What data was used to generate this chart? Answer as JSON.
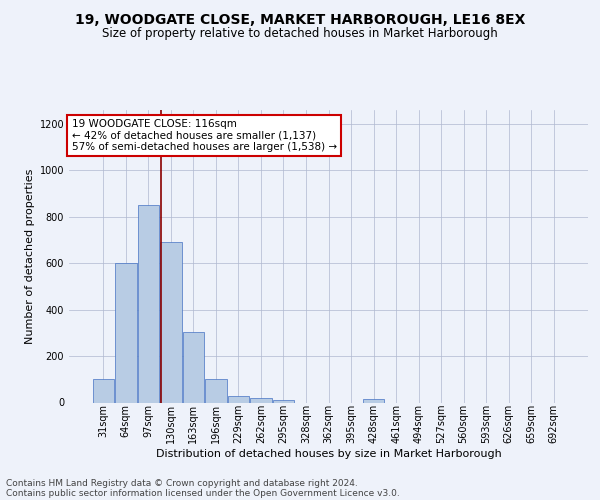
{
  "title1": "19, WOODGATE CLOSE, MARKET HARBOROUGH, LE16 8EX",
  "title2": "Size of property relative to detached houses in Market Harborough",
  "xlabel": "Distribution of detached houses by size in Market Harborough",
  "ylabel": "Number of detached properties",
  "categories": [
    "31sqm",
    "64sqm",
    "97sqm",
    "130sqm",
    "163sqm",
    "196sqm",
    "229sqm",
    "262sqm",
    "295sqm",
    "328sqm",
    "362sqm",
    "395sqm",
    "428sqm",
    "461sqm",
    "494sqm",
    "527sqm",
    "560sqm",
    "593sqm",
    "626sqm",
    "659sqm",
    "692sqm"
  ],
  "values": [
    100,
    600,
    850,
    690,
    305,
    100,
    30,
    20,
    10,
    0,
    0,
    0,
    15,
    0,
    0,
    0,
    0,
    0,
    0,
    0,
    0
  ],
  "bar_color": "#b8cce4",
  "bar_edge_color": "#4472c4",
  "vline_color": "#8b0000",
  "annotation_text": "19 WOODGATE CLOSE: 116sqm\n← 42% of detached houses are smaller (1,137)\n57% of semi-detached houses are larger (1,538) →",
  "annotation_box_color": "white",
  "annotation_box_edge_color": "#cc0000",
  "ylim": [
    0,
    1260
  ],
  "yticks": [
    0,
    200,
    400,
    600,
    800,
    1000,
    1200
  ],
  "footer1": "Contains HM Land Registry data © Crown copyright and database right 2024.",
  "footer2": "Contains public sector information licensed under the Open Government Licence v3.0.",
  "bg_color": "#eef2fa",
  "grid_color": "#b0b8d0",
  "title1_fontsize": 10,
  "title2_fontsize": 8.5,
  "xlabel_fontsize": 8,
  "ylabel_fontsize": 8,
  "tick_fontsize": 7,
  "footer_fontsize": 6.5,
  "annot_fontsize": 7.5
}
